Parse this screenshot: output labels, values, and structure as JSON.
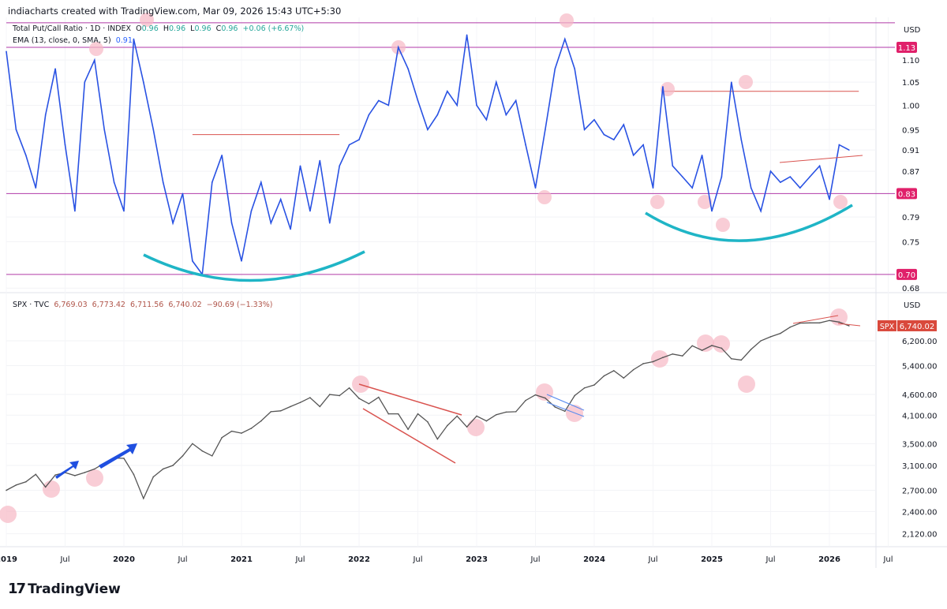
{
  "header": {
    "caption": "indiacharts created with TradingView.com, Mar 09, 2026 15:43 UTC+5:30"
  },
  "upper_legend": {
    "symbol": "Total Put/Call Ratio · 1D · INDEX",
    "open_label": "O",
    "open": "0.96",
    "high_label": "H",
    "high": "0.96",
    "low_label": "L",
    "low": "0.96",
    "close_label": "C",
    "close": "0.96",
    "change": "+0.06 (+6.67%)",
    "ema_label": "EMA (13, close, 0, SMA, 5)",
    "ema_value": "0.91"
  },
  "lower_legend": {
    "symbol": "SPX · TVC",
    "open": "6,769.03",
    "high": "6,773.42",
    "low": "6,711.56",
    "close": "6,740.02",
    "change": "−90.69 (−1.33%)"
  },
  "footer": {
    "logo_text": "TradingView"
  },
  "colors": {
    "pcr_line": "#2952e3",
    "level_line": "#b03aa8",
    "level_badge": "#e0206a",
    "resistance": "#d9534f",
    "curve": "#1fb5c6",
    "highlight": "#f7b8c4",
    "spx_candles": "#555555",
    "spx_badge": "#d9493c",
    "arrow": "#1f4fe0"
  },
  "chart_data": [
    {
      "type": "line",
      "name": "Total Put/Call Ratio",
      "scale": "log",
      "currency_label": "USD",
      "ylim": [
        0.67,
        1.2
      ],
      "yticks": [
        "1.10",
        "1.05",
        "1.00",
        "0.95",
        "0.91",
        "0.87",
        "0.79",
        "0.75",
        "0.68"
      ],
      "ytick_values": [
        1.1,
        1.05,
        1.0,
        0.95,
        0.91,
        0.87,
        0.79,
        0.75,
        0.68
      ],
      "levels": [
        {
          "value": 1.13,
          "label": "1.13"
        },
        {
          "value": 0.83,
          "label": "0.83"
        },
        {
          "value": 0.7,
          "label": "0.70"
        },
        {
          "value": 1.19,
          "label": ""
        }
      ],
      "resistance_levels": [
        {
          "value": 0.94,
          "from": "2020-08",
          "to": "2021-11"
        },
        {
          "value": 1.03,
          "from": "2024-08",
          "to": "2026-04"
        }
      ],
      "start": "2019-01",
      "step": "month",
      "values": [
        1.12,
        0.95,
        0.9,
        0.84,
        0.98,
        1.08,
        0.92,
        0.8,
        1.05,
        1.1,
        0.95,
        0.85,
        0.8,
        1.15,
        1.05,
        0.95,
        0.85,
        0.78,
        0.83,
        0.72,
        0.7,
        0.85,
        0.9,
        0.78,
        0.72,
        0.8,
        0.85,
        0.78,
        0.82,
        0.77,
        0.88,
        0.8,
        0.89,
        0.78,
        0.88,
        0.92,
        0.93,
        0.98,
        1.01,
        1.0,
        1.13,
        1.08,
        1.01,
        0.95,
        0.98,
        1.03,
        1.0,
        1.16,
        1.0,
        0.97,
        1.05,
        0.98,
        1.01,
        0.92,
        0.84,
        0.95,
        1.08,
        1.15,
        1.08,
        0.95,
        0.97,
        0.94,
        0.93,
        0.96,
        0.9,
        0.92,
        0.84,
        1.04,
        0.88,
        0.86,
        0.84,
        0.9,
        0.8,
        0.86,
        1.05,
        0.93,
        0.84,
        0.8,
        0.87,
        0.85,
        0.86,
        0.84,
        0.86,
        0.88,
        0.82,
        0.92,
        0.91
      ]
    },
    {
      "type": "line",
      "name": "SPX",
      "scale": "log",
      "currency_label": "USD",
      "ylim": [
        2000,
        7100
      ],
      "yticks": [
        "6,200.00",
        "5,400.00",
        "4,600.00",
        "4,100.00",
        "3,500.00",
        "3,100.00",
        "2,700.00",
        "2,400.00",
        "2,120.00"
      ],
      "ytick_values": [
        6200,
        5400,
        4600,
        4100,
        3500,
        3100,
        2700,
        2400,
        2120
      ],
      "last_badge": {
        "symbol": "SPX",
        "value": "6,740.02"
      },
      "start": "2019-01",
      "step": "month",
      "values": [
        2700,
        2780,
        2830,
        2950,
        2750,
        2940,
        2980,
        2930,
        2980,
        3040,
        3140,
        3230,
        3225,
        2950,
        2580,
        2910,
        3040,
        3100,
        3270,
        3500,
        3360,
        3270,
        3620,
        3750,
        3710,
        3810,
        3970,
        4180,
        4200,
        4300,
        4400,
        4520,
        4300,
        4600,
        4570,
        4770,
        4500,
        4370,
        4530,
        4130,
        4130,
        3790,
        4130,
        3950,
        3590,
        3870,
        4080,
        3840,
        4080,
        3970,
        4110,
        4170,
        4180,
        4450,
        4590,
        4510,
        4290,
        4190,
        4570,
        4770,
        4850,
        5100,
        5250,
        5040,
        5280,
        5460,
        5520,
        5650,
        5760,
        5700,
        6030,
        5880,
        6040,
        5950,
        5610,
        5570,
        5910,
        6200,
        6340,
        6460,
        6690,
        6840,
        6850,
        6850,
        6940,
        6880,
        6740
      ]
    }
  ],
  "time_axis": {
    "labels": [
      "2019",
      "Jul",
      "2020",
      "Jul",
      "2021",
      "Jul",
      "2022",
      "Jul",
      "2023",
      "Jul",
      "2024",
      "Jul",
      "2025",
      "Jul",
      "2026",
      "Jul"
    ],
    "positions": [
      2019,
      2019.5,
      2020,
      2020.5,
      2021,
      2021.5,
      2022,
      2022.5,
      2023,
      2023.5,
      2024,
      2024.5,
      2025,
      2025.5,
      2026,
      2026.5
    ]
  }
}
